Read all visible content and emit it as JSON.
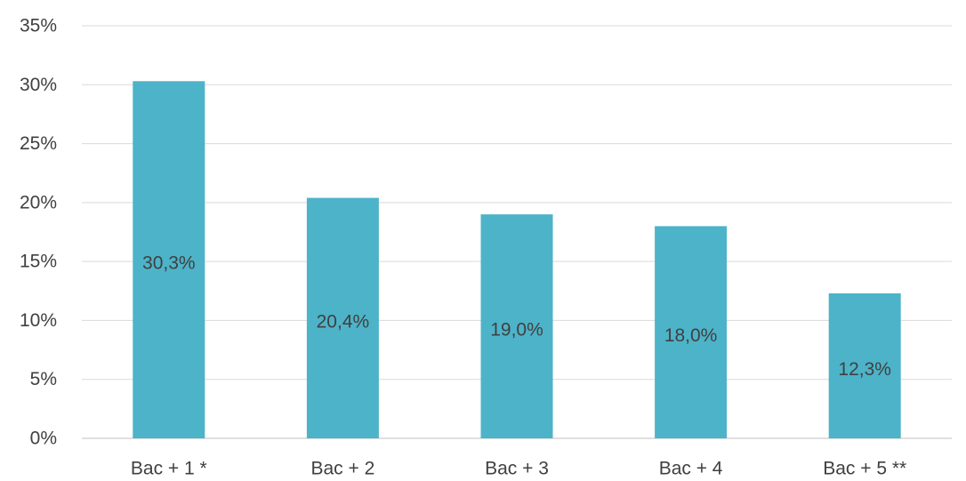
{
  "chart_data": {
    "type": "bar",
    "title": "",
    "xlabel": "",
    "ylabel": "",
    "categories": [
      "Bac + 1 *",
      "Bac + 2",
      "Bac + 3",
      "Bac + 4",
      "Bac + 5 **"
    ],
    "values": [
      30.3,
      20.4,
      19.0,
      18.0,
      12.3
    ],
    "data_labels": [
      "30,3%",
      "20,4%",
      "19,0%",
      "18,0%",
      "12,3%"
    ],
    "ylim": [
      0,
      35
    ],
    "yticks": [
      0,
      5,
      10,
      15,
      20,
      25,
      30,
      35
    ],
    "ytick_labels": [
      "0%",
      "5%",
      "10%",
      "15%",
      "20%",
      "25%",
      "30%",
      "35%"
    ],
    "grid": true,
    "legend": "none",
    "bar_color": "#4db3c8",
    "label_color": "#404040",
    "grid_color": "#d9d9d9"
  }
}
